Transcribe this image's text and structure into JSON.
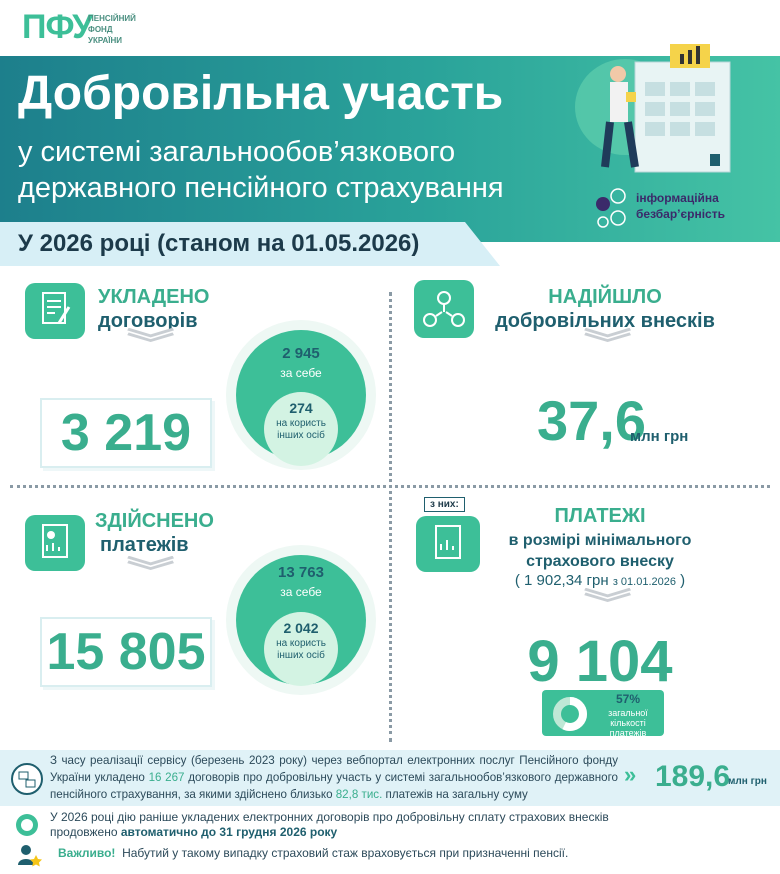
{
  "header": {
    "logo": "ПФУ",
    "org_lines": [
      "ПЕНСІЙНИЙ",
      "ФОНД",
      "УКРАЇНИ"
    ],
    "title": "Добровільна участь",
    "subtitle_lines": [
      "у системі загальнообов’язкового",
      "державного пенсійного страхування"
    ],
    "badge_lines": [
      "інформаційна",
      "безбар’єрність"
    ],
    "period": "У 2026 році (станом на 01.05.2026)"
  },
  "contracts": {
    "label": "УКЛАДЕНО",
    "label2": "договорів",
    "total": "3 219",
    "self": "2 945",
    "self_label": "за себе",
    "others": "274",
    "others_label_lines": [
      "на користь",
      "інших осіб"
    ]
  },
  "contributions": {
    "label": "НАДІЙШЛО",
    "label2": "добровільних внесків",
    "amount": "37,6",
    "unit": "млн грн"
  },
  "payments": {
    "label": "ЗДІЙСНЕНО",
    "label2": "платежів",
    "total": "15 805",
    "self": "13 763",
    "self_label": "за себе",
    "others": "2 042",
    "others_label_lines": [
      "на користь",
      "інших осіб"
    ]
  },
  "min_payments": {
    "tag": "з них:",
    "label": "ПЛАТЕЖІ",
    "label_lines": [
      "в розмірі мінімального",
      "страхового внеску"
    ],
    "open": "(",
    "amount": "1 902,34 грн",
    "since": "з 01.01.2026",
    "close": ")",
    "count": "9 104",
    "share": {
      "value": 57,
      "label": "57%"
    },
    "share_label_lines": [
      "загальної",
      "кількості платежів"
    ]
  },
  "note": {
    "parts": [
      "З часу реалізації сервісу (березень 2023 року) через вебпортал електронних послуг Пенсійного фонду України укладено ",
      "16 267",
      " договорів про добровільну участь у системі загальнообов’язкового державного пенсійного страхування, за якими здійснено близько ",
      "82,8 тис.",
      " платежів на загальну суму"
    ],
    "sum": "189,6",
    "unit": "млн грн"
  },
  "footer": {
    "auto_text": "У 2026 році дію раніше укладених електронних договорів про добровільну сплату страхових внесків продовжено ",
    "auto_bold": "автоматично до 31 грудня 2026 року",
    "important": "Важливо!",
    "important_text": "Набутий у такому випадку страховий стаж враховується при призначенні пенсії."
  }
}
